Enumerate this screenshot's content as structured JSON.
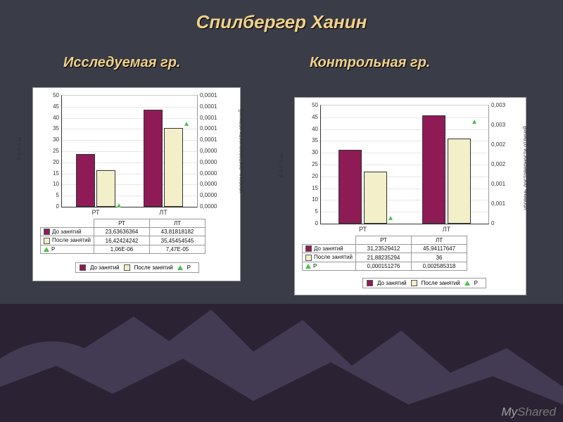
{
  "title": "Спилбергер Ханин",
  "subtitles": {
    "left": "Исследуемая гр.",
    "right": "Контрольная  гр."
  },
  "watermark": {
    "a": "My",
    "b": "Shared"
  },
  "colors": {
    "before": "#8e1b56",
    "after": "#f2efc9",
    "p": "#4fbf4f",
    "page_top": "#3a3c48"
  },
  "axis_labels": {
    "left": "б а л л ы",
    "right": "уровень достоверности отличий"
  },
  "legend_items": {
    "before": "До занятий",
    "after": "После занятий",
    "p": "Р"
  },
  "chart1": {
    "categories": [
      "РТ",
      "ЛТ"
    ],
    "ylim": [
      0,
      50
    ],
    "ystep": 5,
    "y2lim": [
      0,
      0.0001
    ],
    "y2_ticks": [
      "0,0000",
      "0,0000",
      "0,0000",
      "0,0000",
      "0,0000",
      "0,0000",
      "0,0001",
      "0,0001",
      "0,0001",
      "0,0001",
      "0,0001"
    ],
    "series": {
      "before": [
        23.63636364,
        43.81818182
      ],
      "after": [
        16.42424242,
        35.45454545
      ],
      "p": [
        1.06e-06,
        7.47e-05
      ]
    },
    "table": {
      "rows": [
        {
          "label": "До занятий",
          "vals": [
            "23,63636364",
            "43,81818182"
          ],
          "sw": "before"
        },
        {
          "label": "После занятий",
          "vals": [
            "16,42424242",
            "35,45454545"
          ],
          "sw": "after"
        },
        {
          "label": "Р",
          "vals": [
            "1,06E-06",
            "7,47E-05"
          ],
          "sw": "p"
        }
      ]
    }
  },
  "chart2": {
    "categories": [
      "РТ",
      "ЛТ"
    ],
    "ylim": [
      0,
      50
    ],
    "ystep": 5,
    "y2lim": [
      0,
      0.003
    ],
    "y2_ticks": [
      "0",
      "0,001",
      "0,001",
      "0,002",
      "0,002",
      "0,003",
      "0,003"
    ],
    "series": {
      "before": [
        31.23529412,
        45.94117647
      ],
      "after": [
        21.88235294,
        36
      ],
      "p": [
        0.000151276,
        0.002585318
      ]
    },
    "table": {
      "rows": [
        {
          "label": "До занятий",
          "vals": [
            "31,23529412",
            "45,94117647"
          ],
          "sw": "before"
        },
        {
          "label": "После занятий",
          "vals": [
            "21,88235294",
            "36"
          ],
          "sw": "after"
        },
        {
          "label": "Р",
          "vals": [
            "0,000151276",
            "0,002585318"
          ],
          "sw": "p"
        }
      ]
    }
  }
}
